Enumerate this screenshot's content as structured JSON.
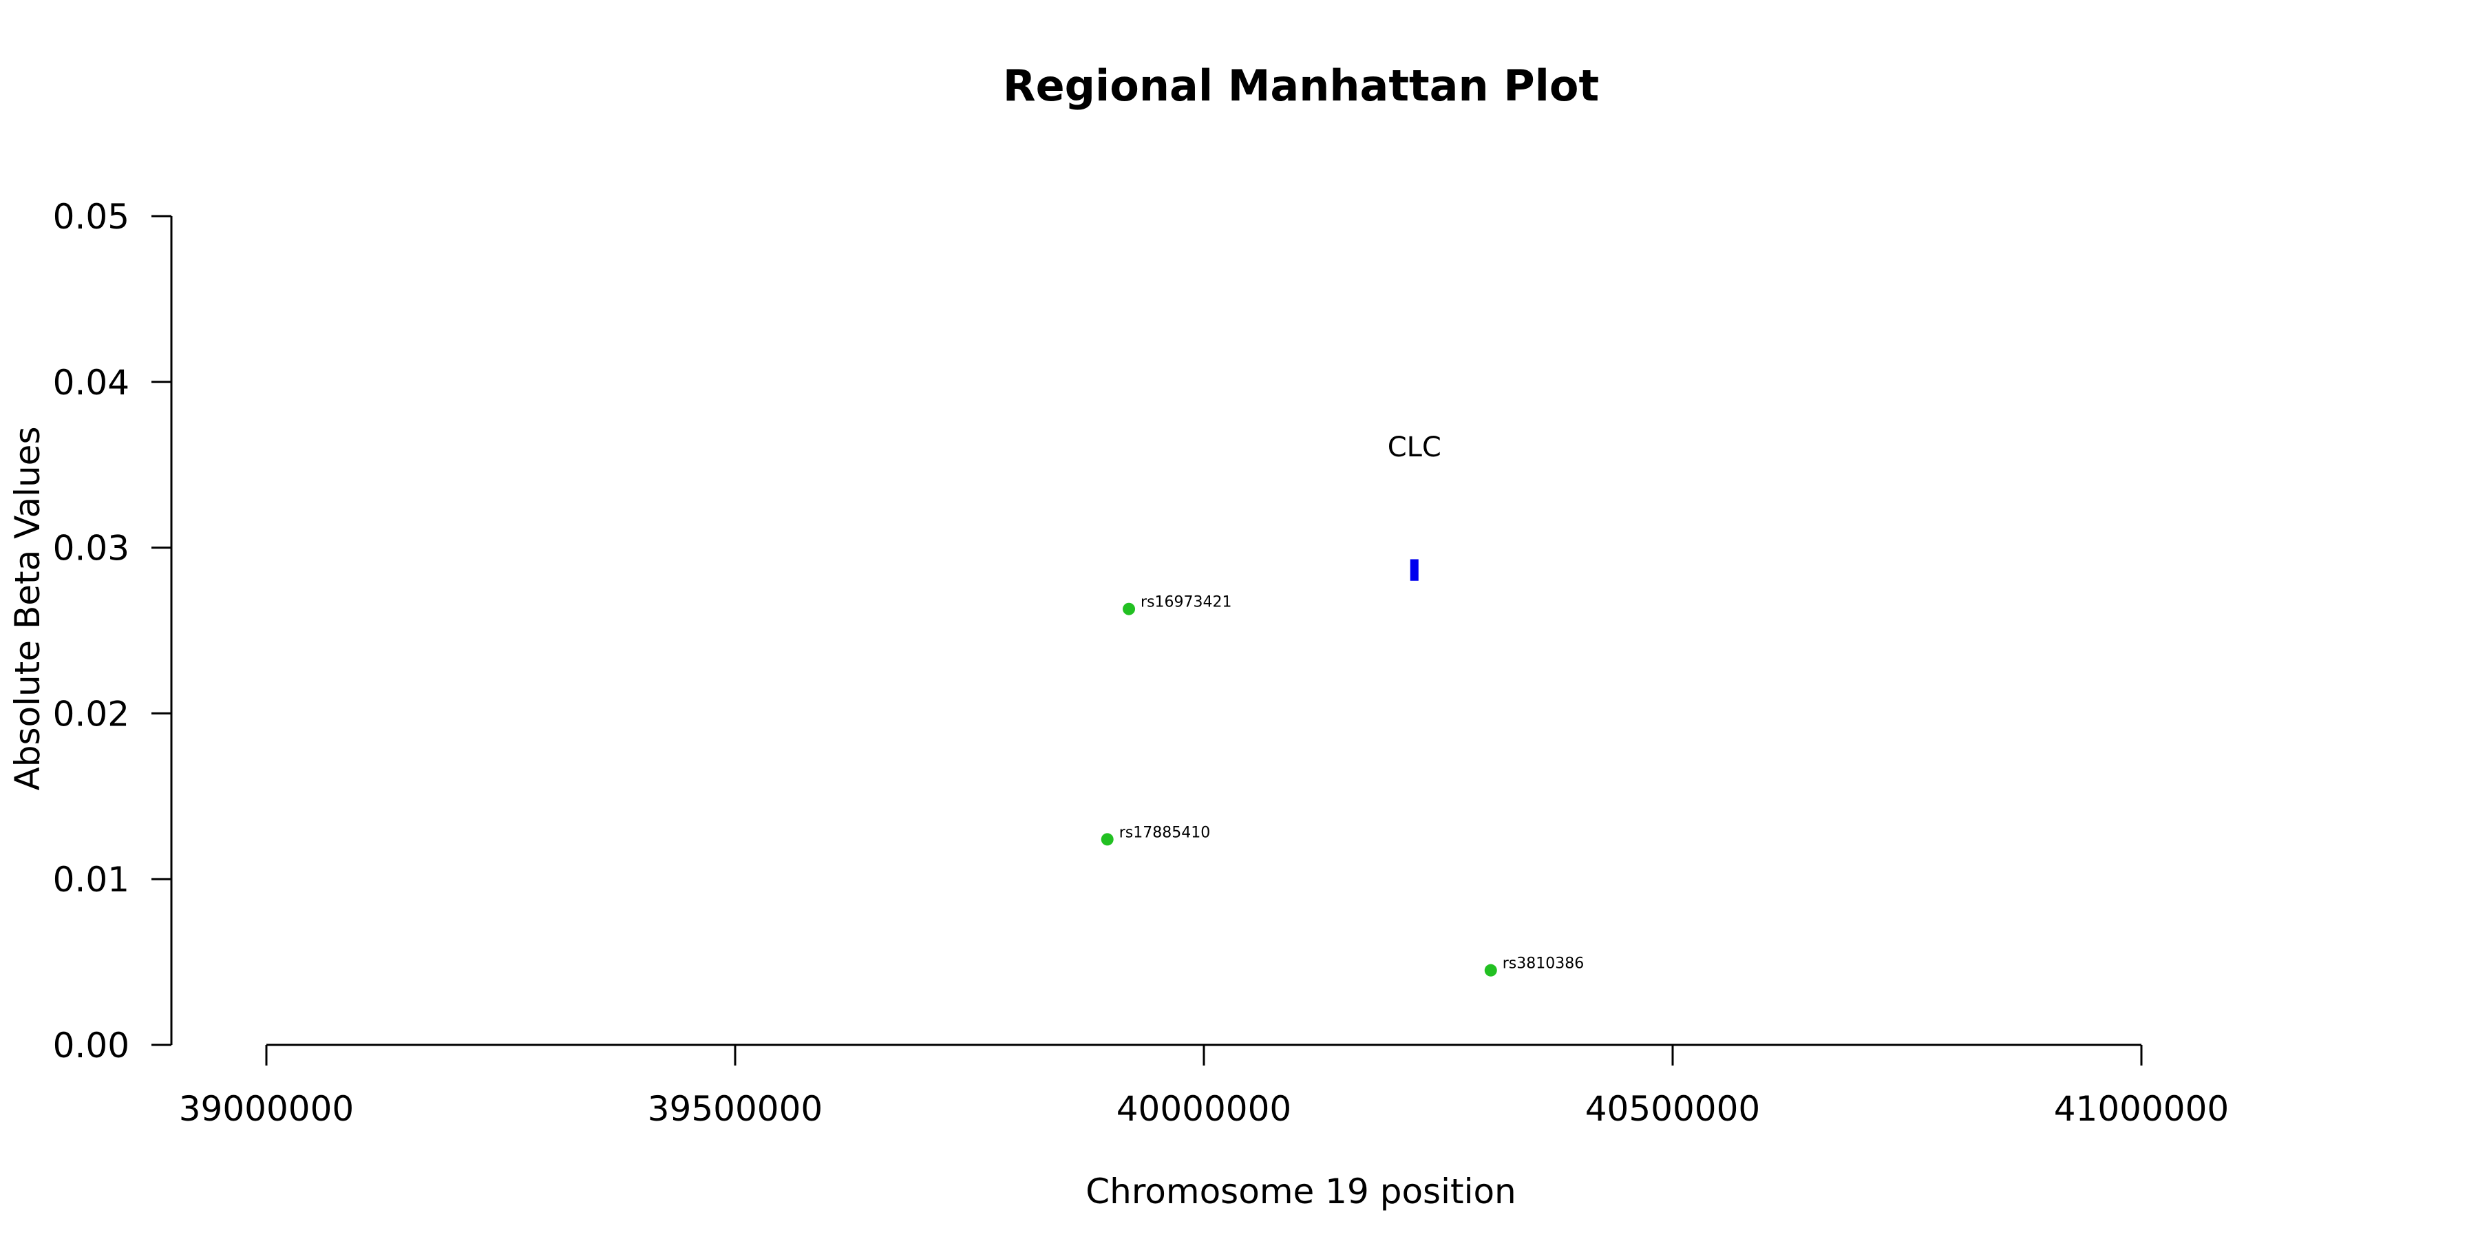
{
  "chart_data": {
    "type": "scatter",
    "title": "Regional Manhattan Plot",
    "xlabel": "Chromosome 19 position",
    "ylabel": "Absolute Beta Values",
    "xlim": [
      39000000,
      41000000
    ],
    "ylim": [
      0,
      0.05
    ],
    "x_ticks": [
      "39000000",
      "39500000",
      "40000000",
      "40500000",
      "41000000"
    ],
    "x_tick_values": [
      39000000,
      39500000,
      40000000,
      40500000,
      41000000
    ],
    "y_ticks": [
      "0.00",
      "0.01",
      "0.02",
      "0.03",
      "0.04",
      "0.05"
    ],
    "y_tick_values": [
      0,
      0.01,
      0.02,
      0.03,
      0.04,
      0.05
    ],
    "grid": false,
    "points": [
      {
        "label": "rs16973421",
        "x": 39920000,
        "y": 0.0263
      },
      {
        "label": "rs17885410",
        "x": 39897000,
        "y": 0.0124
      },
      {
        "label": "rs3810386",
        "x": 40306000,
        "y": 0.0045
      }
    ],
    "point_color": "#22c022",
    "gene": {
      "label": "CLC",
      "start": 40221000,
      "end": 40228000,
      "y_low": 0.028,
      "y_high": 0.0293,
      "color": "#0000ee"
    }
  }
}
